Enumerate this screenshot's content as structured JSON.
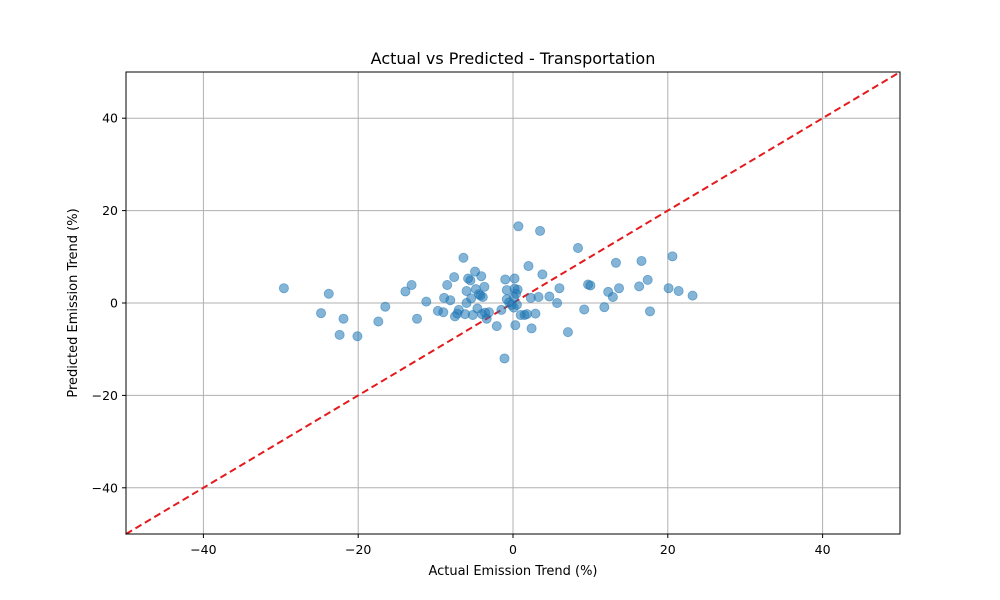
{
  "chart_data": {
    "type": "scatter",
    "title": "Actual vs Predicted - Transportation",
    "xlabel": "Actual Emission Trend (%)",
    "ylabel": "Predicted Emission Trend (%)",
    "xlim": [
      -50,
      50
    ],
    "ylim": [
      -50,
      50
    ],
    "xticks": [
      -40,
      -20,
      0,
      20,
      40
    ],
    "yticks": [
      -40,
      -20,
      0,
      20,
      40
    ],
    "xtick_labels": [
      "−40",
      "−20",
      "0",
      "20",
      "40"
    ],
    "ytick_labels": [
      "−40",
      "−20",
      "0",
      "20",
      "40"
    ],
    "grid": true,
    "reference_line": {
      "from": [
        -50,
        -50
      ],
      "to": [
        50,
        50
      ],
      "style": "dashed",
      "color": "#e41a1c"
    },
    "marker_color": "#1f77b4",
    "marker_alpha": 0.55,
    "points": [
      [
        -29.6,
        3.2
      ],
      [
        -24.8,
        -2.2
      ],
      [
        -23.8,
        2.0
      ],
      [
        -22.4,
        -6.9
      ],
      [
        -21.9,
        -3.4
      ],
      [
        -20.1,
        -7.2
      ],
      [
        -17.4,
        -4.0
      ],
      [
        -16.5,
        -0.8
      ],
      [
        -13.9,
        2.5
      ],
      [
        -13.1,
        3.9
      ],
      [
        -12.4,
        -3.4
      ],
      [
        -11.2,
        0.3
      ],
      [
        -9.7,
        -1.7
      ],
      [
        -9.0,
        -2.0
      ],
      [
        -8.9,
        1.1
      ],
      [
        -8.5,
        3.9
      ],
      [
        -8.1,
        0.6
      ],
      [
        -7.6,
        5.6
      ],
      [
        -7.5,
        -2.9
      ],
      [
        -7.2,
        -2.3
      ],
      [
        -7.0,
        -1.5
      ],
      [
        -6.4,
        9.8
      ],
      [
        -6.2,
        -2.4
      ],
      [
        -6.0,
        2.6
      ],
      [
        -6.0,
        0.0
      ],
      [
        -5.8,
        5.3
      ],
      [
        -5.5,
        4.9
      ],
      [
        -5.4,
        1.0
      ],
      [
        -5.2,
        -2.6
      ],
      [
        -4.9,
        6.8
      ],
      [
        -4.8,
        3.0
      ],
      [
        -4.6,
        -1.2
      ],
      [
        -4.4,
        1.9
      ],
      [
        -4.2,
        1.6
      ],
      [
        -4.1,
        5.8
      ],
      [
        -4.0,
        -2.4
      ],
      [
        -3.9,
        1.3
      ],
      [
        -3.7,
        3.5
      ],
      [
        -3.6,
        -2.1
      ],
      [
        -3.4,
        -3.4
      ],
      [
        -3.1,
        -2.0
      ],
      [
        -2.1,
        -5.0
      ],
      [
        -1.5,
        -1.5
      ],
      [
        -1.1,
        -12.0
      ],
      [
        -1.0,
        5.1
      ],
      [
        -0.8,
        2.8
      ],
      [
        -0.8,
        0.8
      ],
      [
        -0.5,
        0.1
      ],
      [
        -0.2,
        -0.4
      ],
      [
        0.1,
        -1.0
      ],
      [
        0.1,
        1.3
      ],
      [
        0.2,
        3.1
      ],
      [
        0.2,
        5.3
      ],
      [
        0.3,
        -4.8
      ],
      [
        0.4,
        2.0
      ],
      [
        0.5,
        -0.4
      ],
      [
        0.6,
        2.9
      ],
      [
        0.7,
        16.6
      ],
      [
        1.0,
        -2.6
      ],
      [
        1.5,
        -2.6
      ],
      [
        1.8,
        -2.4
      ],
      [
        2.0,
        8.0
      ],
      [
        2.3,
        1.1
      ],
      [
        2.4,
        -5.5
      ],
      [
        2.9,
        -2.3
      ],
      [
        3.3,
        1.3
      ],
      [
        3.5,
        15.6
      ],
      [
        3.8,
        6.2
      ],
      [
        4.7,
        1.4
      ],
      [
        5.7,
        0.0
      ],
      [
        6.0,
        3.2
      ],
      [
        7.1,
        -6.3
      ],
      [
        8.4,
        11.9
      ],
      [
        9.2,
        -1.4
      ],
      [
        9.7,
        4.0
      ],
      [
        10.0,
        3.8
      ],
      [
        11.8,
        -0.9
      ],
      [
        12.3,
        2.4
      ],
      [
        12.9,
        1.3
      ],
      [
        13.3,
        8.7
      ],
      [
        13.7,
        3.2
      ],
      [
        16.3,
        3.6
      ],
      [
        16.6,
        9.1
      ],
      [
        17.4,
        5.0
      ],
      [
        17.7,
        -1.8
      ],
      [
        20.1,
        3.2
      ],
      [
        20.6,
        10.1
      ],
      [
        21.4,
        2.6
      ],
      [
        23.2,
        1.6
      ]
    ]
  }
}
